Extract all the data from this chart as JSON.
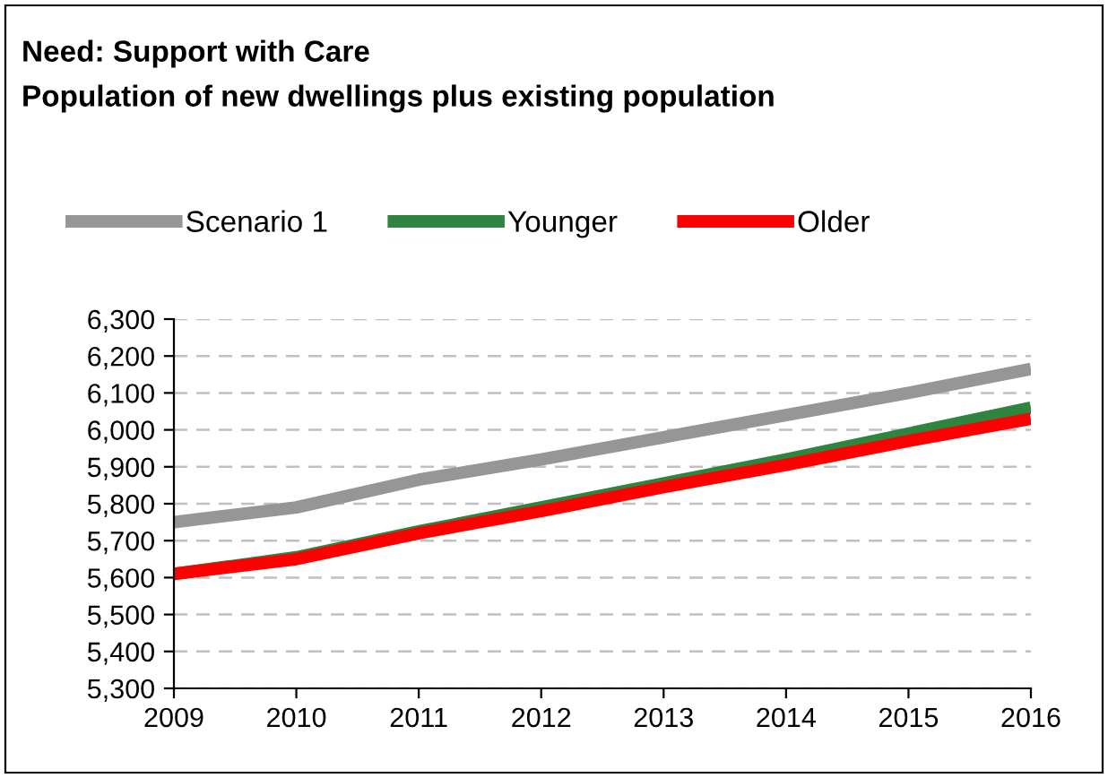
{
  "chart_data": {
    "type": "line",
    "title": "Need: Support with Care",
    "subtitle": "Population of new dwellings plus existing population",
    "categories": [
      "2009",
      "2010",
      "2011",
      "2012",
      "2013",
      "2014",
      "2015",
      "2016"
    ],
    "series": [
      {
        "name": "Scenario 1",
        "color": "#969696",
        "values": [
          5750,
          5790,
          5865,
          5920,
          5980,
          6040,
          6100,
          6165
        ]
      },
      {
        "name": "Younger",
        "color": "#2e8540",
        "values": [
          5610,
          5655,
          5725,
          5790,
          5855,
          5920,
          5990,
          6060
        ]
      },
      {
        "name": "Older",
        "color": "#ff0000",
        "values": [
          5610,
          5650,
          5720,
          5780,
          5845,
          5905,
          5970,
          6030
        ]
      }
    ],
    "ylim": [
      5300,
      6300
    ],
    "yticks": [
      {
        "value": 5300,
        "label": "5,300"
      },
      {
        "value": 5400,
        "label": "5,400"
      },
      {
        "value": 5500,
        "label": "5,500"
      },
      {
        "value": 5600,
        "label": "5,600"
      },
      {
        "value": 5700,
        "label": "5,700"
      },
      {
        "value": 5800,
        "label": "5,800"
      },
      {
        "value": 5900,
        "label": "5,900"
      },
      {
        "value": 6000,
        "label": "6,000"
      },
      {
        "value": 6100,
        "label": "6,100"
      },
      {
        "value": 6200,
        "label": "6,200"
      },
      {
        "value": 6300,
        "label": "6,300"
      }
    ],
    "grid": "y",
    "legend": "top",
    "marker": "none",
    "line_style": "solid"
  }
}
